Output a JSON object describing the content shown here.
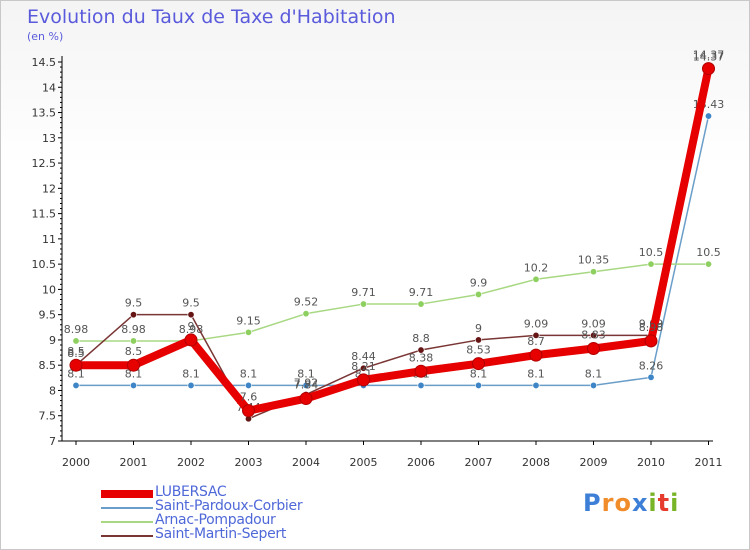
{
  "title": "Evolution du Taux de Taxe d'Habitation",
  "unit_label": "(en %)",
  "logo": {
    "letters": [
      "P",
      "r",
      "o",
      "x",
      "i",
      "t",
      "i"
    ],
    "colors": [
      "#3d7fd6",
      "#f08c2a",
      "#f08c2a",
      "#3d7fd6",
      "#78b428",
      "#e63c2e",
      "#78b428"
    ]
  },
  "chart_data": {
    "type": "line",
    "title": "Evolution du Taux de Taxe d'Habitation",
    "ylabel": "(en %)",
    "xlabel": "",
    "x": [
      "2000",
      "2001",
      "2002",
      "2003",
      "2004",
      "2005",
      "2006",
      "2007",
      "2008",
      "2009",
      "2010",
      "2011"
    ],
    "ylim": [
      7,
      14.5
    ],
    "yticks": [
      "7",
      "7.5",
      "8",
      "8.5",
      "9",
      "9.5",
      "10",
      "10.5",
      "11",
      "11.5",
      "12",
      "12.5",
      "13",
      "13.5",
      "14",
      "14.5"
    ],
    "grid": false,
    "legend_position": "bottom",
    "series": [
      {
        "name": "Saint-Pardoux-Corbier",
        "color": "#6a9ec8",
        "marker": "#3d85c6",
        "values": [
          8.1,
          8.1,
          8.1,
          8.1,
          8.1,
          8.1,
          8.1,
          8.1,
          8.1,
          8.1,
          8.26,
          13.43
        ],
        "labels": [
          "8.1",
          "8.1",
          "8.1",
          "8.1",
          "8.1",
          "8.1",
          "8.1",
          "8.1",
          "8.1",
          "8.1",
          "8.26",
          "13.43"
        ]
      },
      {
        "name": "Arnac-Pompadour",
        "color": "#a8d882",
        "marker": "#8ed060",
        "values": [
          8.98,
          8.98,
          8.98,
          9.15,
          9.52,
          9.71,
          9.71,
          9.9,
          10.2,
          10.35,
          10.5,
          10.5
        ],
        "labels": [
          "8.98",
          "8.98",
          "8.98",
          "9.15",
          "9.52",
          "9.71",
          "9.71",
          "9.9",
          "10.2",
          "10.35",
          "10.5",
          "10.5"
        ]
      },
      {
        "name": "Saint-Martin-Sepert",
        "color": "#7a3535",
        "marker": "#661515",
        "values": [
          8.5,
          9.5,
          9.5,
          7.44,
          7.92,
          8.44,
          8.8,
          9.0,
          9.09,
          9.09,
          9.09,
          14.37
        ],
        "labels": [
          "8.5",
          "9.5",
          "9.5",
          "7.44",
          "7.92",
          "8.44",
          "8.8",
          "9",
          "9.09",
          "9.09",
          "9.09",
          "14.37"
        ]
      },
      {
        "name": "LUBERSAC",
        "color": "#e60000",
        "marker": "#e60000",
        "values": [
          8.5,
          8.5,
          9.0,
          7.6,
          7.84,
          8.21,
          8.38,
          8.53,
          8.7,
          8.83,
          8.98,
          14.37
        ],
        "labels": [
          "8.5",
          "8.5",
          "9",
          "7.6",
          "7.84",
          "8.21",
          "8.38",
          "8.53",
          "8.7",
          "8.83",
          "8.98",
          "14.37"
        ]
      }
    ],
    "legend_order": [
      "LUBERSAC",
      "Saint-Pardoux-Corbier",
      "Arnac-Pompadour",
      "Saint-Martin-Sepert"
    ]
  }
}
